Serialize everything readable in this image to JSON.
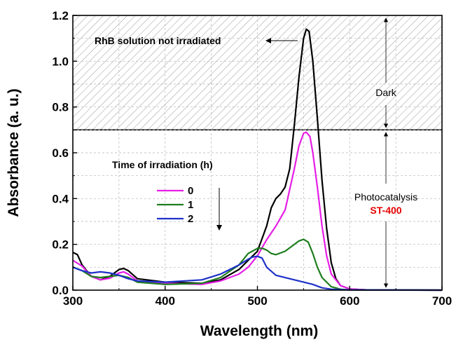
{
  "chart_data": {
    "type": "line",
    "xlabel": "Wavelength (nm)",
    "ylabel": "Absorbance (a. u.)",
    "xlim": [
      300,
      700
    ],
    "ylim": [
      0,
      1.2
    ],
    "xticks": [
      "300",
      "400",
      "500",
      "600",
      "700"
    ],
    "yticks": [
      "0.0",
      "0.2",
      "0.4",
      "0.6",
      "0.8",
      "1.0",
      "1.2"
    ],
    "grid": true,
    "legend_title": "Time of irradiation (h)",
    "legend_position": "center-left",
    "series": [
      {
        "name": "0",
        "color": "#e61ee6",
        "x": [
          300,
          310,
          320,
          330,
          340,
          350,
          355,
          360,
          370,
          400,
          440,
          460,
          480,
          490,
          500,
          510,
          520,
          530,
          540,
          545,
          550,
          553,
          557,
          560,
          565,
          570,
          575,
          580,
          590,
          600,
          620,
          700
        ],
        "y": [
          0.13,
          0.105,
          0.06,
          0.045,
          0.052,
          0.075,
          0.08,
          0.07,
          0.04,
          0.03,
          0.025,
          0.04,
          0.07,
          0.1,
          0.15,
          0.22,
          0.28,
          0.35,
          0.53,
          0.63,
          0.685,
          0.69,
          0.67,
          0.6,
          0.45,
          0.28,
          0.15,
          0.07,
          0.02,
          0.005,
          0.001,
          0.0
        ]
      },
      {
        "name": "1",
        "color": "#1e7d1e",
        "x": [
          300,
          310,
          320,
          330,
          340,
          350,
          360,
          370,
          400,
          440,
          460,
          480,
          490,
          500,
          505,
          510,
          515,
          520,
          530,
          540,
          545,
          550,
          555,
          560,
          565,
          570,
          580,
          590,
          600,
          700
        ],
        "y": [
          0.1,
          0.085,
          0.06,
          0.055,
          0.06,
          0.065,
          0.055,
          0.035,
          0.025,
          0.03,
          0.055,
          0.11,
          0.16,
          0.182,
          0.183,
          0.175,
          0.16,
          0.155,
          0.17,
          0.2,
          0.215,
          0.222,
          0.21,
          0.16,
          0.1,
          0.055,
          0.015,
          0.004,
          0.001,
          0.0
        ]
      },
      {
        "name": "2",
        "color": "#1e32c8",
        "x": [
          300,
          310,
          320,
          330,
          340,
          350,
          360,
          370,
          400,
          440,
          460,
          480,
          490,
          495,
          500,
          505,
          510,
          520,
          540,
          560,
          570,
          580,
          600,
          700
        ],
        "y": [
          0.1,
          0.085,
          0.075,
          0.08,
          0.075,
          0.065,
          0.05,
          0.04,
          0.035,
          0.045,
          0.07,
          0.11,
          0.135,
          0.145,
          0.148,
          0.14,
          0.1,
          0.065,
          0.045,
          0.025,
          0.01,
          0.004,
          0.001,
          0.0
        ]
      },
      {
        "name": "RhB solution not irradiated",
        "color": "#000000",
        "x": [
          300,
          305,
          310,
          320,
          330,
          340,
          350,
          355,
          360,
          370,
          400,
          440,
          460,
          480,
          490,
          500,
          510,
          515,
          520,
          525,
          530,
          535,
          540,
          545,
          550,
          553,
          556,
          560,
          565,
          570,
          575,
          580,
          585,
          590,
          600,
          620,
          700
        ],
        "y": [
          0.165,
          0.155,
          0.11,
          0.06,
          0.045,
          0.06,
          0.09,
          0.095,
          0.085,
          0.05,
          0.035,
          0.03,
          0.045,
          0.09,
          0.13,
          0.17,
          0.28,
          0.36,
          0.4,
          0.42,
          0.45,
          0.53,
          0.72,
          0.93,
          1.1,
          1.14,
          1.13,
          1.0,
          0.75,
          0.48,
          0.27,
          0.12,
          0.05,
          0.02,
          0.005,
          0.001,
          0.0
        ]
      }
    ],
    "annotations": {
      "not_irradiated": "RhB solution not irradiated",
      "dark": "Dark",
      "photocatalysis": "Photocatalysis",
      "catalyst": "ST-400",
      "catalyst_color": "#e60000",
      "dark_region_ylim": [
        0.7,
        1.2
      ]
    }
  }
}
